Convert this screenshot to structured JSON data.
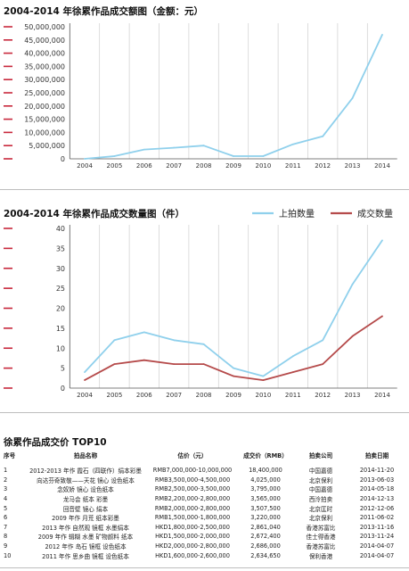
{
  "chart_data": [
    {
      "type": "line",
      "title": "2004-2014 年徐累作品成交额图（金额：元）",
      "categories": [
        "2004",
        "2005",
        "2006",
        "2007",
        "2008",
        "2009",
        "2010",
        "2011",
        "2012",
        "2013",
        "2014"
      ],
      "y_ticks": [
        "0",
        "5,000,000",
        "10,000,000",
        "15,000,000",
        "20,000,000",
        "25,000,000",
        "30,000,000",
        "35,000,000",
        "40,000,000",
        "45,000,000",
        "50,000,000"
      ],
      "ylim": [
        0,
        50000000
      ],
      "grid": "vertical",
      "series": [
        {
          "color": "#8fd0ec",
          "values": [
            0,
            1000000,
            3500000,
            4200000,
            5000000,
            1000000,
            1000000,
            5500000,
            8500000,
            23000000,
            47000000
          ]
        }
      ]
    },
    {
      "type": "line",
      "title": "2004-2014 年徐累作品成交数量图（件）",
      "categories": [
        "2004",
        "2005",
        "2006",
        "2007",
        "2008",
        "2009",
        "2010",
        "2011",
        "2012",
        "2013",
        "2014"
      ],
      "y_ticks": [
        "0",
        "5",
        "10",
        "15",
        "20",
        "25",
        "30",
        "35",
        "40"
      ],
      "ylim": [
        0,
        40
      ],
      "grid": "vertical",
      "legend": "top-right",
      "series": [
        {
          "name": "上拍数量",
          "color": "#8fd0ec",
          "values": [
            4,
            12,
            14,
            12,
            11,
            5,
            3,
            8,
            12,
            26,
            37
          ]
        },
        {
          "name": "成交数量",
          "color": "#b54a4a",
          "values": [
            2,
            6,
            7,
            6,
            6,
            3,
            2,
            4,
            6,
            13,
            18
          ]
        }
      ]
    },
    {
      "type": "table",
      "title": "徐累作品成交价 TOP10",
      "columns": [
        "序号",
        "拍品名称",
        "估价（元）",
        "成交价（RMB）",
        "拍卖公司",
        "拍卖日期"
      ],
      "rows": [
        [
          "1",
          "2012-2013 年作 霞石（四联作）绢本彩墨",
          "RMB7,000,000-10,000,000",
          "18,400,000",
          "中国嘉德",
          "2014-11-20"
        ],
        [
          "2",
          "向达芬奇致敬——天花 镜心 设色纸本",
          "RMB3,500,000-4,500,000",
          "4,025,000",
          "北京保利",
          "2013-06-03"
        ],
        [
          "3",
          "念奴娇 镜心 设色纸本",
          "RMB2,500,000-3,500,000",
          "3,795,000",
          "中国嘉德",
          "2014-05-18"
        ],
        [
          "4",
          "龙马会 纸本 彩墨",
          "RMB2,200,000-2,800,000",
          "3,565,000",
          "西泠拍卖",
          "2014-12-13"
        ],
        [
          "5",
          "回音壁 镜心 绢本",
          "RMB2,000,000-2,800,000",
          "3,507,500",
          "北京匡时",
          "2012-12-06"
        ],
        [
          "6",
          "2009 年作 月荒 纸本彩墨",
          "RMB1,500,000-1,800,000",
          "3,220,000",
          "北京保利",
          "2011-06-02"
        ],
        [
          "7",
          "2013 年作 自然观 镜框 水墨绢本",
          "HKD1,800,000-2,500,000",
          "2,861,040",
          "香港苏富比",
          "2013-11-16"
        ],
        [
          "8",
          "2009 年作 辑糊 水墨 矿物颜料 纸本",
          "HKD1,500,000-2,000,000",
          "2,672,400",
          "佳士得香港",
          "2013-11-24"
        ],
        [
          "9",
          "2012 年作 岛石 镜框 设色纸本",
          "HKD2,000,000-2,800,000",
          "2,686,000",
          "香港苏富比",
          "2014-04-07"
        ],
        [
          "10",
          "2011 年作 思乡曲 镜框 设色纸本",
          "HKD1,600,000-2,600,000",
          "2,634,650",
          "保利香港",
          "2014-04-07"
        ]
      ]
    }
  ],
  "colors": {
    "accent": "#c8283c",
    "light_line": "#8fd0ec",
    "dark_line": "#b54a4a",
    "grid": "#cfcfcf"
  }
}
